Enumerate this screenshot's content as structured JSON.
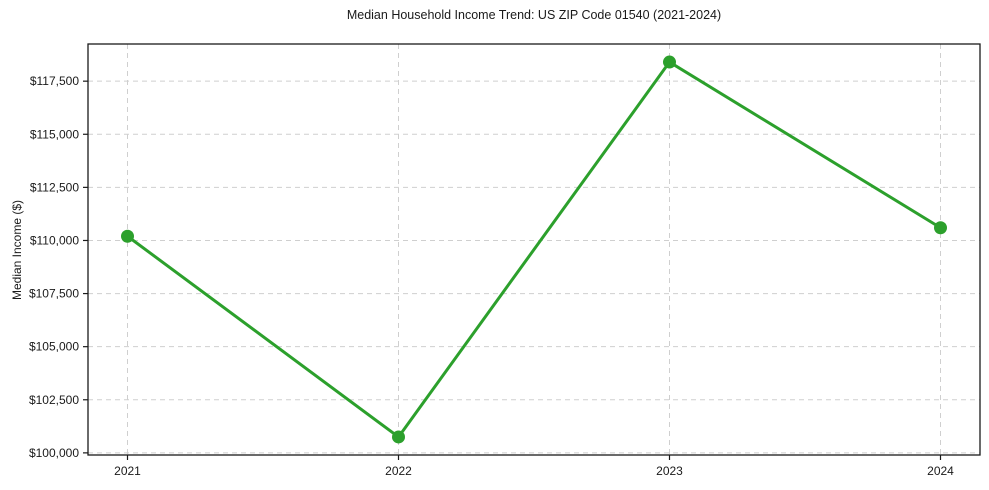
{
  "chart_data": {
    "type": "line",
    "title": "Median Household Income Trend: US ZIP Code 01540 (2021-2024)",
    "xlabel": "",
    "ylabel": "Median Income ($)",
    "categories": [
      "2021",
      "2022",
      "2023",
      "2024"
    ],
    "values": [
      110200,
      100750,
      118400,
      110600
    ],
    "ylim": [
      99900,
      119250
    ],
    "ytick_values": [
      100000,
      102500,
      105000,
      107500,
      110000,
      112500,
      115000,
      117500
    ],
    "ytick_labels": [
      "$100,000",
      "$102,500",
      "$105,000",
      "$107,500",
      "$110,000",
      "$112,500",
      "$115,000",
      "$117,500"
    ],
    "grid": true,
    "grid_style": "dashed",
    "legend_position": "none",
    "line_color": "#2ca02c",
    "marker": "circle",
    "background": "#ffffff",
    "grid_color": "#cfcfcf",
    "text_color": "#1a1a1a"
  }
}
